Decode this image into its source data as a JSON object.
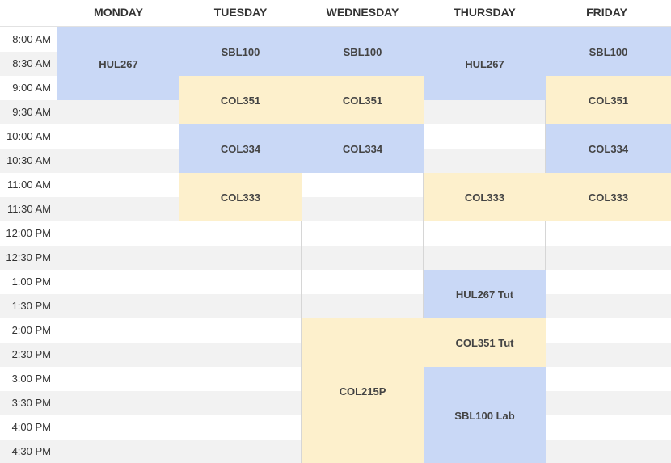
{
  "days": [
    "MONDAY",
    "TUESDAY",
    "WEDNESDAY",
    "THURSDAY",
    "FRIDAY"
  ],
  "times": [
    "8:00 AM",
    "8:30 AM",
    "9:00 AM",
    "9:30 AM",
    "10:00 AM",
    "10:30 AM",
    "11:00 AM",
    "11:30 AM",
    "12:00 PM",
    "12:30 PM",
    "1:00 PM",
    "1:30 PM",
    "2:00 PM",
    "2:30 PM",
    "3:00 PM",
    "3:30 PM",
    "4:00 PM",
    "4:30 PM"
  ],
  "colors": {
    "blue": "#c9d8f6",
    "yellow": "#fdf0cc",
    "stripe": "#f2f2f2"
  },
  "events": [
    {
      "label": "HUL267",
      "day": 0,
      "start": 0,
      "slots": 3,
      "color": "blue"
    },
    {
      "label": "SBL100",
      "day": 1,
      "start": 0,
      "slots": 2,
      "color": "blue"
    },
    {
      "label": "COL351",
      "day": 1,
      "start": 2,
      "slots": 2,
      "color": "yellow"
    },
    {
      "label": "COL334",
      "day": 1,
      "start": 4,
      "slots": 2,
      "color": "blue"
    },
    {
      "label": "COL333",
      "day": 1,
      "start": 6,
      "slots": 2,
      "color": "yellow"
    },
    {
      "label": "SBL100",
      "day": 2,
      "start": 0,
      "slots": 2,
      "color": "blue"
    },
    {
      "label": "COL351",
      "day": 2,
      "start": 2,
      "slots": 2,
      "color": "yellow"
    },
    {
      "label": "COL334",
      "day": 2,
      "start": 4,
      "slots": 2,
      "color": "blue"
    },
    {
      "label": "COL215P",
      "day": 2,
      "start": 12,
      "slots": 6,
      "color": "yellow"
    },
    {
      "label": "HUL267",
      "day": 3,
      "start": 0,
      "slots": 3,
      "color": "blue"
    },
    {
      "label": "COL333",
      "day": 3,
      "start": 6,
      "slots": 2,
      "color": "yellow"
    },
    {
      "label": "HUL267 Tut",
      "day": 3,
      "start": 10,
      "slots": 2,
      "color": "blue"
    },
    {
      "label": "COL351 Tut",
      "day": 3,
      "start": 12,
      "slots": 2,
      "color": "yellow"
    },
    {
      "label": "SBL100 Lab",
      "day": 3,
      "start": 14,
      "slots": 4,
      "color": "blue"
    },
    {
      "label": "SBL100",
      "day": 4,
      "start": 0,
      "slots": 2,
      "color": "blue"
    },
    {
      "label": "COL351",
      "day": 4,
      "start": 2,
      "slots": 2,
      "color": "yellow"
    },
    {
      "label": "COL334",
      "day": 4,
      "start": 4,
      "slots": 2,
      "color": "blue"
    },
    {
      "label": "COL333",
      "day": 4,
      "start": 6,
      "slots": 2,
      "color": "yellow"
    }
  ]
}
